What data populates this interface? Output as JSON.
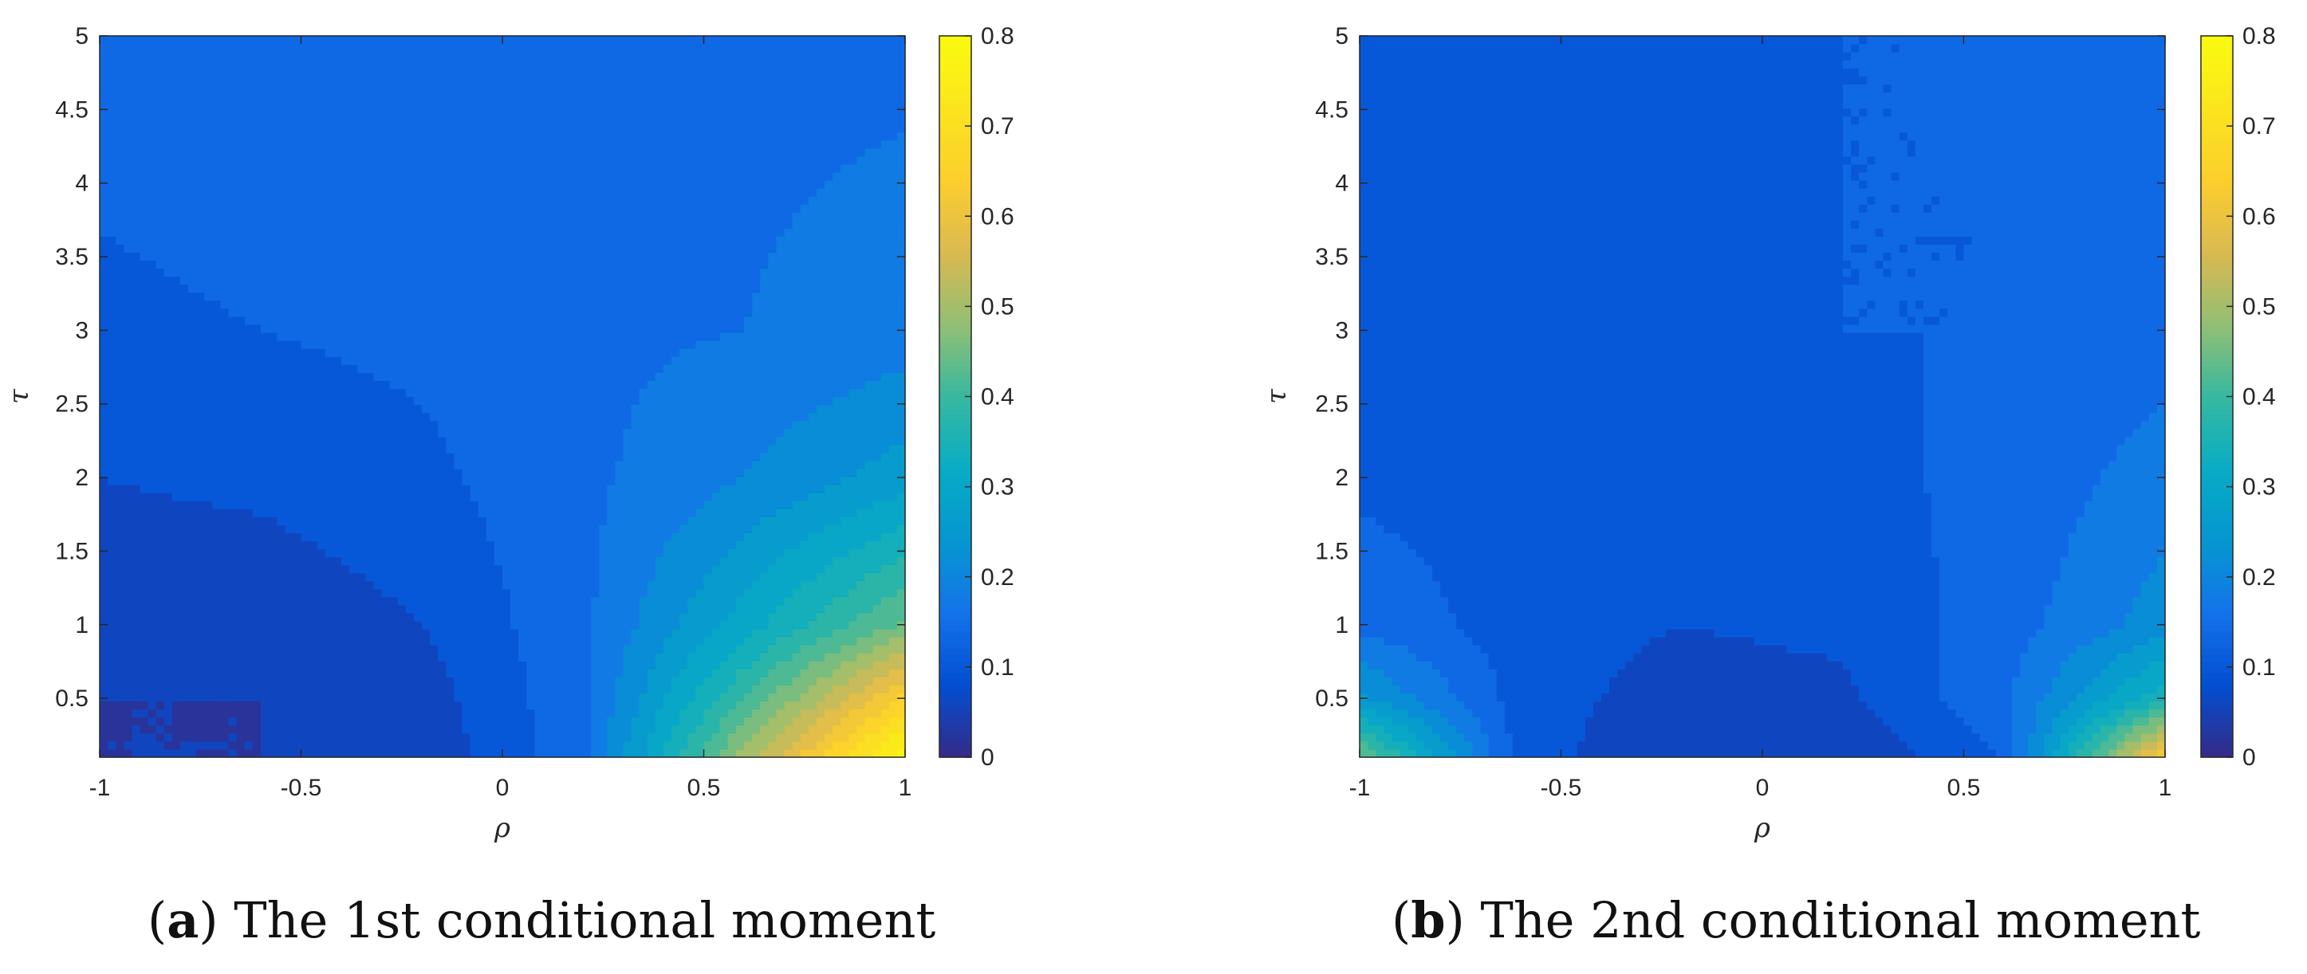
{
  "captions": [
    {
      "letter": "a",
      "text": "The 1st conditional moment"
    },
    {
      "letter": "b",
      "text": "The 2nd conditional moment"
    }
  ],
  "chart_data": [
    {
      "type": "heatmap",
      "title": "",
      "xlabel": "ρ",
      "ylabel": "τ",
      "xlim": [
        -1,
        1
      ],
      "ylim": [
        0.1,
        5
      ],
      "xticks": [
        -1,
        -0.5,
        0,
        0.5,
        1
      ],
      "xtick_labels": [
        "-1",
        "-0.5",
        "0",
        "0.5",
        "1"
      ],
      "yticks": [
        0.5,
        1,
        1.5,
        2,
        2.5,
        3,
        3.5,
        4,
        4.5,
        5
      ],
      "ytick_labels": [
        "0.5",
        "1",
        "1.5",
        "2",
        "2.5",
        "3",
        "3.5",
        "4",
        "4.5",
        "5"
      ],
      "colorbar": {
        "min": 0,
        "max": 0.8,
        "ticks": [
          0,
          0.1,
          0.2,
          0.3,
          0.4,
          0.5,
          0.6,
          0.7,
          0.8
        ],
        "tick_labels": [
          "0",
          "0.1",
          "0.2",
          "0.3",
          "0.4",
          "0.5",
          "0.6",
          "0.7",
          "0.8"
        ]
      },
      "colormap": "parula",
      "grid": false,
      "x": [
        -1.0,
        -0.6,
        -0.2,
        0.2,
        0.6,
        1.0
      ],
      "y": [
        0.1,
        0.5,
        1.0,
        2.0,
        3.0,
        5.0
      ],
      "z": [
        [
          0.04,
          0.04,
          0.05,
          0.15,
          0.5,
          0.79
        ],
        [
          0.04,
          0.04,
          0.06,
          0.15,
          0.4,
          0.65
        ],
        [
          0.05,
          0.05,
          0.08,
          0.15,
          0.3,
          0.45
        ],
        [
          0.08,
          0.09,
          0.11,
          0.15,
          0.2,
          0.26
        ],
        [
          0.11,
          0.12,
          0.13,
          0.15,
          0.16,
          0.18
        ],
        [
          0.14,
          0.15,
          0.15,
          0.15,
          0.15,
          0.15
        ]
      ]
    },
    {
      "type": "heatmap",
      "title": "",
      "xlabel": "ρ",
      "ylabel": "τ",
      "xlim": [
        -1,
        1
      ],
      "ylim": [
        0.1,
        5
      ],
      "xticks": [
        -1,
        -0.5,
        0,
        0.5,
        1
      ],
      "xtick_labels": [
        "-1",
        "-0.5",
        "0",
        "0.5",
        "1"
      ],
      "yticks": [
        0.5,
        1,
        1.5,
        2,
        2.5,
        3,
        3.5,
        4,
        4.5,
        5
      ],
      "ytick_labels": [
        "0.5",
        "1",
        "1.5",
        "2",
        "2.5",
        "3",
        "3.5",
        "4",
        "4.5",
        "5"
      ],
      "colorbar": {
        "min": 0,
        "max": 0.8,
        "ticks": [
          0,
          0.1,
          0.2,
          0.3,
          0.4,
          0.5,
          0.6,
          0.7,
          0.8
        ],
        "tick_labels": [
          "0",
          "0.1",
          "0.2",
          "0.3",
          "0.4",
          "0.5",
          "0.6",
          "0.7",
          "0.8"
        ]
      },
      "colormap": "parula",
      "grid": false,
      "x": [
        -1.0,
        -0.6,
        -0.2,
        0.2,
        0.6,
        1.0
      ],
      "y": [
        0.1,
        0.5,
        1.0,
        2.0,
        3.0,
        5.0
      ],
      "z": [
        [
          0.45,
          0.1,
          0.04,
          0.04,
          0.12,
          0.65
        ],
        [
          0.25,
          0.1,
          0.06,
          0.07,
          0.15,
          0.35
        ],
        [
          0.15,
          0.1,
          0.08,
          0.09,
          0.14,
          0.22
        ],
        [
          0.11,
          0.1,
          0.1,
          0.11,
          0.13,
          0.18
        ],
        [
          0.1,
          0.11,
          0.11,
          0.12,
          0.12,
          0.14
        ],
        [
          0.12,
          0.12,
          0.12,
          0.12,
          0.12,
          0.12
        ]
      ]
    }
  ]
}
